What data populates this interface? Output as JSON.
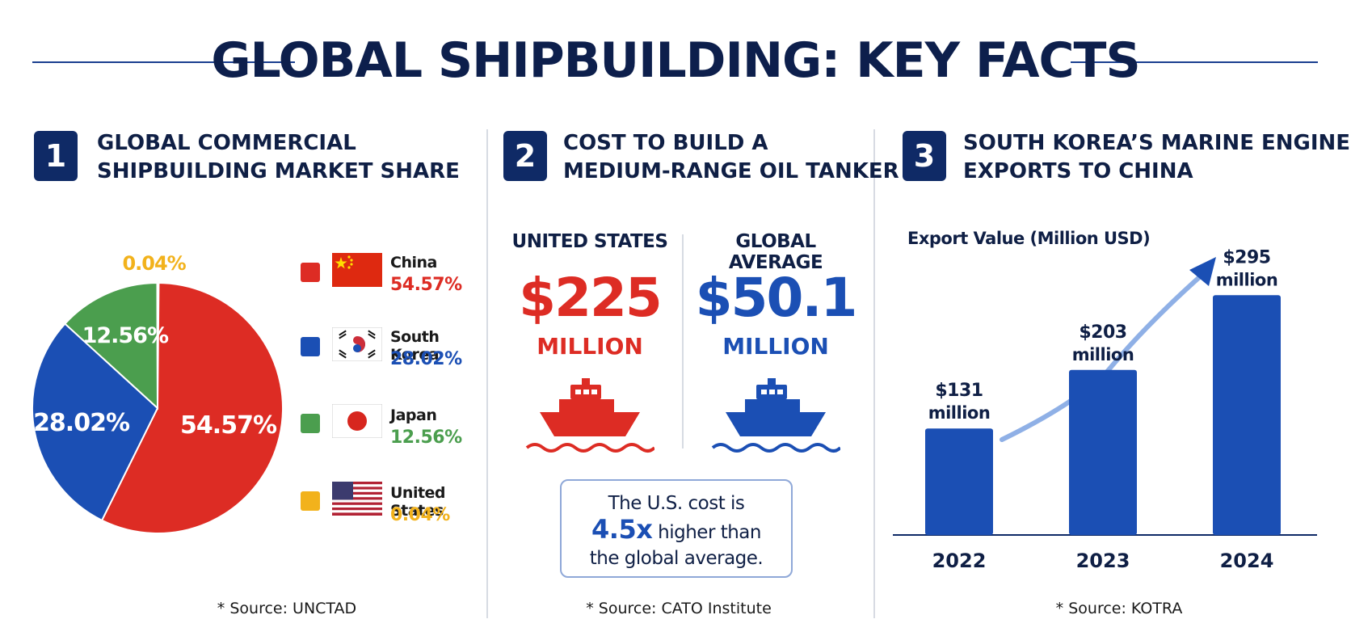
{
  "header": {
    "title": "GLOBAL SHIPBUILDING: KEY FACTS"
  },
  "panels": [
    {
      "number": "1",
      "title_line1": "GLOBAL COMMERCIAL",
      "title_line2": "SHIPBUILDING MARKET SHARE",
      "source": "* Source: UNCTAD"
    },
    {
      "number": "2",
      "title_line1": "COST TO BUILD A",
      "title_line2": "MEDIUM-RANGE OIL TANKER",
      "source": "* Source: CATO Institute"
    },
    {
      "number": "3",
      "title_line1": "SOUTH KOREA’S MARINE ENGINE",
      "title_line2": "EXPORTS TO CHINA",
      "source": "* Source: KOTRA"
    }
  ],
  "colors": {
    "china": "#dd2c24",
    "korea": "#1b4fb4",
    "japan": "#4b9e4e",
    "us": "#f2b21c",
    "navy": "#0f2a66"
  },
  "chart_data": [
    {
      "type": "pie",
      "categories": [
        "China",
        "South Korea",
        "Japan",
        "United States"
      ],
      "values": [
        54.57,
        28.02,
        12.56,
        0.04
      ],
      "labels": [
        "54.57%",
        "28.02%",
        "12.56%",
        "0.04%"
      ],
      "colors": [
        "#dd2c24",
        "#1b4fb4",
        "#4b9e4e",
        "#f2b21c"
      ],
      "title": "GLOBAL COMMERCIAL SHIPBUILDING MARKET SHARE",
      "legend": "right"
    },
    {
      "type": "table",
      "categories": [
        "UNITED STATES",
        "GLOBAL AVERAGE"
      ],
      "values": [
        225,
        50.1
      ],
      "value_labels": [
        "$225",
        "$50.1"
      ],
      "unit": "MILLION",
      "title": "COST TO BUILD A MEDIUM-RANGE OIL TANKER"
    },
    {
      "type": "bar",
      "categories": [
        "2022",
        "2023",
        "2024"
      ],
      "values": [
        131,
        203,
        295
      ],
      "value_labels_line1": [
        "$131",
        "$203",
        "$295"
      ],
      "value_labels_line2": [
        "million",
        "million",
        "million"
      ],
      "ylabel": "Export Value (Million USD)",
      "ylim": [
        0,
        340
      ],
      "grid": false,
      "title": "SOUTH KOREA’S MARINE ENGINE EXPORTS TO CHINA"
    }
  ],
  "note": {
    "line1": "The U.S. cost is",
    "strong": "4.5x",
    "line2_rest": " higher than",
    "line3": "the global average."
  }
}
